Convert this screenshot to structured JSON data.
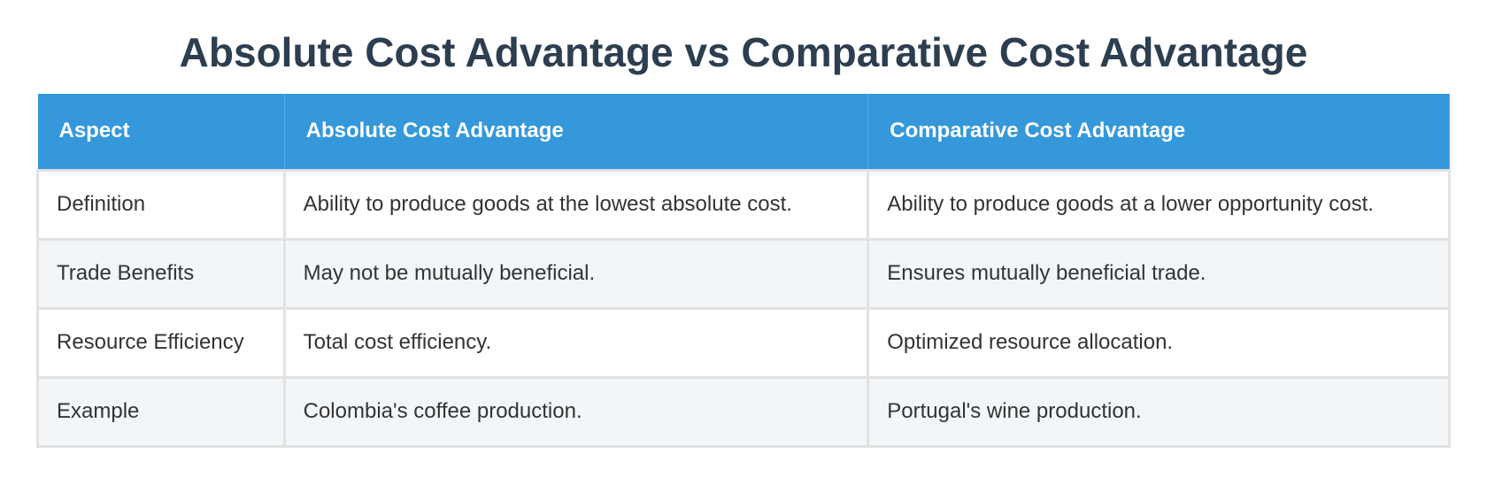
{
  "header": {
    "title": "Absolute Cost Advantage vs Comparative Cost Advantage"
  },
  "table": {
    "headers": [
      "Aspect",
      "Absolute Cost Advantage",
      "Comparative Cost Advantage"
    ],
    "rows": [
      [
        "Definition",
        "Ability to produce goods at the lowest absolute cost.",
        "Ability to produce goods at a lower opportunity cost."
      ],
      [
        "Trade Benefits",
        "May not be mutually beneficial.",
        "Ensures mutually beneficial trade."
      ],
      [
        "Resource Efficiency",
        "Total cost efficiency.",
        "Optimized resource allocation."
      ],
      [
        "Example",
        "Colombia's coffee production.",
        "Portugal's wine production."
      ]
    ]
  }
}
